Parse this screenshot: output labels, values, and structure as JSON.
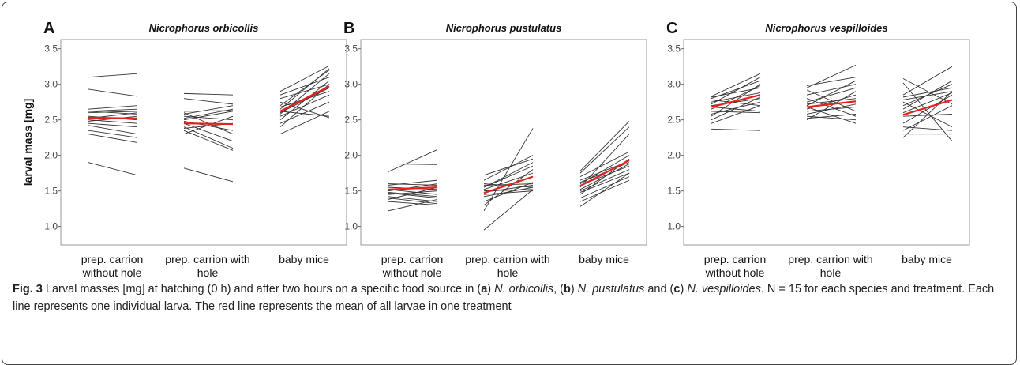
{
  "chart_data": [
    {
      "type": "slope",
      "label": "A",
      "title": "Nicrophorus orbicollis",
      "y_label": "larval mass [mg]",
      "categories": [
        "prep. carrion without hole",
        "prep. carrion with hole",
        "baby mice"
      ],
      "ylim": [
        0.74,
        3.63
      ],
      "yticks": [
        {
          "value": 1,
          "label": "1.0"
        },
        1.5,
        {
          "value": 2,
          "label": "2.0"
        },
        2.5,
        {
          "value": 3,
          "label": "3.0"
        },
        3.5
      ],
      "line_color": "#333333",
      "mean_color": "#e8201c",
      "groups": [
        {
          "start": [
            3.1,
            1.9,
            2.93,
            2.65,
            2.62,
            2.6,
            2.55,
            2.5,
            2.48,
            2.45,
            2.42,
            2.35,
            2.3,
            2.62,
            2.52
          ],
          "end": [
            3.15,
            1.72,
            2.83,
            2.7,
            2.65,
            2.62,
            2.5,
            2.45,
            2.55,
            2.4,
            2.3,
            2.25,
            2.18,
            2.58,
            2.6
          ],
          "mean": [
            2.53,
            2.52
          ]
        },
        {
          "start": [
            2.87,
            2.8,
            1.82,
            2.62,
            2.58,
            2.55,
            2.5,
            2.48,
            2.45,
            2.4,
            2.35,
            2.3,
            2.6,
            2.52,
            2.38
          ],
          "end": [
            2.85,
            2.72,
            1.63,
            2.63,
            2.7,
            2.5,
            2.62,
            2.35,
            2.2,
            2.1,
            2.07,
            2.55,
            2.3,
            2.65,
            2.45
          ],
          "mean": [
            2.45,
            2.44
          ]
        },
        {
          "start": [
            2.9,
            2.85,
            2.8,
            2.75,
            2.7,
            2.65,
            2.6,
            2.58,
            2.55,
            2.5,
            2.45,
            2.4,
            2.3,
            2.62,
            2.68
          ],
          "end": [
            3.26,
            3.1,
            3.0,
            2.53,
            3.2,
            3.22,
            2.95,
            3.15,
            2.85,
            3.05,
            2.75,
            3.0,
            2.62,
            2.55,
            2.9
          ],
          "mean": [
            2.62,
            2.97
          ]
        }
      ]
    },
    {
      "type": "slope",
      "label": "B",
      "title": "Nicrophorus pustulatus",
      "categories": [
        "prep. carrion without hole",
        "prep. carrion with hole",
        "baby mice"
      ],
      "ylim": [
        0.74,
        3.63
      ],
      "yticks": [
        {
          "value": 1,
          "label": "1.0"
        },
        1.5,
        {
          "value": 2,
          "label": "2.0"
        },
        2.5,
        {
          "value": 3,
          "label": "3.0"
        },
        3.5
      ],
      "line_color": "#333333",
      "mean_color": "#e8201c",
      "groups": [
        {
          "start": [
            1.88,
            1.77,
            1.6,
            1.55,
            1.52,
            1.5,
            1.47,
            1.45,
            1.42,
            1.4,
            1.38,
            1.35,
            1.22,
            1.58,
            1.48
          ],
          "end": [
            1.87,
            2.08,
            1.58,
            1.52,
            1.45,
            1.6,
            1.4,
            1.5,
            1.35,
            1.32,
            1.55,
            1.3,
            1.38,
            1.65,
            1.42
          ],
          "mean": [
            1.52,
            1.55
          ]
        },
        {
          "start": [
            1.72,
            1.65,
            1.6,
            1.58,
            1.55,
            1.52,
            1.5,
            1.48,
            1.45,
            1.42,
            1.35,
            1.3,
            1.22,
            0.95,
            1.55
          ],
          "end": [
            1.95,
            2.0,
            1.55,
            1.6,
            1.9,
            1.75,
            1.52,
            1.58,
            1.5,
            1.55,
            1.62,
            1.8,
            2.38,
            1.52,
            1.85
          ],
          "mean": [
            1.47,
            1.7
          ]
        },
        {
          "start": [
            1.78,
            1.75,
            1.7,
            1.65,
            1.6,
            1.58,
            1.55,
            1.52,
            1.5,
            1.48,
            1.45,
            1.4,
            1.35,
            1.28,
            1.62
          ],
          "end": [
            2.48,
            2.4,
            2.05,
            1.92,
            2.0,
            1.85,
            2.3,
            1.88,
            1.8,
            1.75,
            1.95,
            1.7,
            1.65,
            1.75,
            1.9
          ],
          "mean": [
            1.57,
            1.93
          ]
        }
      ]
    },
    {
      "type": "slope",
      "label": "C",
      "title": "Nicrophorus vespilloides",
      "categories": [
        "prep. carrion without hole",
        "prep. carrion with hole",
        "baby mice"
      ],
      "ylim": [
        0.74,
        3.63
      ],
      "yticks": [
        {
          "value": 1,
          "label": "1.0"
        },
        1.5,
        {
          "value": 2,
          "label": "2.0"
        },
        2.5,
        {
          "value": 3,
          "label": "3.0"
        },
        3.5
      ],
      "line_color": "#333333",
      "mean_color": "#e8201c",
      "groups": [
        {
          "start": [
            2.83,
            2.82,
            2.8,
            2.78,
            2.75,
            2.72,
            2.7,
            2.68,
            2.65,
            2.62,
            2.58,
            2.55,
            2.5,
            2.45,
            2.37
          ],
          "end": [
            3.15,
            2.95,
            3.05,
            2.7,
            2.88,
            3.1,
            2.8,
            2.62,
            2.98,
            2.6,
            2.75,
            3.0,
            2.82,
            2.7,
            2.35
          ],
          "mean": [
            2.68,
            2.85
          ]
        },
        {
          "start": [
            2.98,
            2.95,
            2.92,
            2.85,
            2.8,
            2.75,
            2.72,
            2.7,
            2.68,
            2.65,
            2.62,
            2.58,
            2.55,
            2.52,
            2.5
          ],
          "end": [
            3.1,
            3.27,
            2.62,
            3.0,
            2.55,
            2.95,
            2.8,
            3.05,
            2.45,
            2.85,
            2.68,
            2.72,
            2.5,
            2.58,
            2.9
          ],
          "mean": [
            2.68,
            2.76
          ]
        },
        {
          "start": [
            3.08,
            3.02,
            2.85,
            2.82,
            2.78,
            2.75,
            2.7,
            2.65,
            2.6,
            2.55,
            2.45,
            2.4,
            2.35,
            2.3,
            2.25
          ],
          "end": [
            2.72,
            2.2,
            3.25,
            2.95,
            2.9,
            2.4,
            3.0,
            3.05,
            2.88,
            2.58,
            2.85,
            2.35,
            2.7,
            2.3,
            2.9
          ],
          "mean": [
            2.57,
            2.78
          ]
        }
      ]
    }
  ],
  "caption": [
    {
      "text": "Fig. 3",
      "style": "bold"
    },
    {
      "text": " Larval masses [mg] at hatching (0 h) and after two hours on a specific food source in ("
    },
    {
      "text": "a",
      "style": "bold"
    },
    {
      "text": ") "
    },
    {
      "text": "N. orbicollis",
      "style": "italic"
    },
    {
      "text": ", ("
    },
    {
      "text": "b",
      "style": "bold"
    },
    {
      "text": ") "
    },
    {
      "text": "N. pustulatus",
      "style": "italic"
    },
    {
      "text": " and ("
    },
    {
      "text": "c",
      "style": "bold"
    },
    {
      "text": ") "
    },
    {
      "text": "N. vespilloides",
      "style": "italic"
    },
    {
      "text": ". N = 15 for each species and treatment. Each line represents one individual larva. The red line represents the mean of all larvae in one treatment"
    }
  ]
}
